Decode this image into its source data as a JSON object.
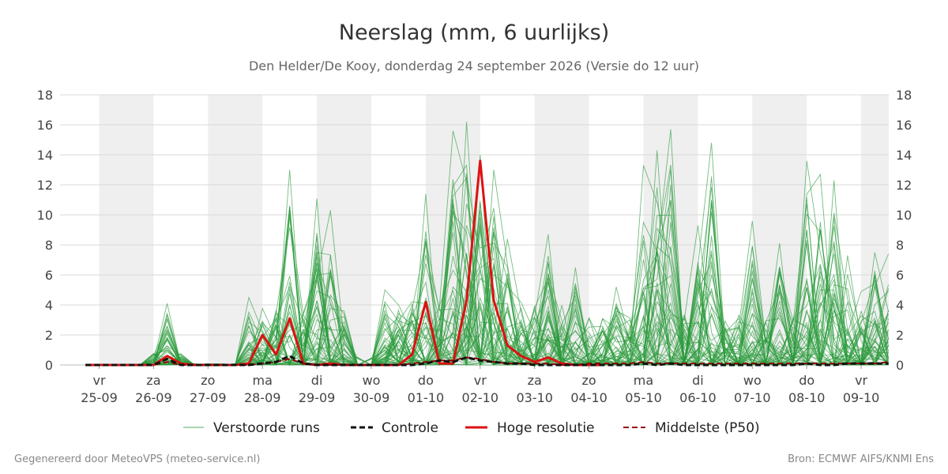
{
  "chart_data": {
    "type": "line",
    "title": "Neerslag (mm, 6 uurlijks)",
    "subtitle": "Den Helder/De Kooy, donderdag 24 september 2026 (Versie do 12 uur)",
    "ylim": [
      0,
      18
    ],
    "yticks": [
      0,
      2,
      4,
      6,
      8,
      10,
      12,
      14,
      16,
      18
    ],
    "x_start_day": "2026-09-24",
    "x_end_day": "2026-10-10",
    "x_ticks": [
      {
        "day": "vr",
        "date": "25-09"
      },
      {
        "day": "za",
        "date": "26-09"
      },
      {
        "day": "zo",
        "date": "27-09"
      },
      {
        "day": "ma",
        "date": "28-09"
      },
      {
        "day": "di",
        "date": "29-09"
      },
      {
        "day": "wo",
        "date": "30-09"
      },
      {
        "day": "do",
        "date": "01-10"
      },
      {
        "day": "vr",
        "date": "02-10"
      },
      {
        "day": "za",
        "date": "03-10"
      },
      {
        "day": "zo",
        "date": "04-10"
      },
      {
        "day": "ma",
        "date": "05-10"
      },
      {
        "day": "di",
        "date": "06-10"
      },
      {
        "day": "wo",
        "date": "07-10"
      },
      {
        "day": "do",
        "date": "08-10"
      },
      {
        "day": "vr",
        "date": "09-10"
      }
    ],
    "shaded_days": [
      "25-09",
      "27-09",
      "29-09",
      "01-10",
      "03-10",
      "05-10",
      "07-10",
      "09-10"
    ],
    "grid": true,
    "legend_position": "bottom",
    "series": [
      {
        "name": "Hoge resolutie",
        "color": "#dd1111",
        "x": [
          -0.25,
          0,
          0.25,
          0.5,
          0.75,
          1.0,
          1.25,
          1.5,
          1.75,
          2.0,
          2.25,
          2.5,
          2.75,
          3.0,
          3.25,
          3.5,
          3.75,
          4.0,
          4.25,
          4.5,
          4.75,
          5.0,
          5.25,
          5.5,
          5.75,
          6.0,
          6.25,
          6.5,
          6.75,
          7.0,
          7.25,
          7.5,
          7.75,
          8.0,
          8.25,
          8.5,
          8.75,
          9.0,
          9.25
        ],
        "values": [
          0.0,
          0.0,
          0.0,
          0.0,
          0.0,
          0.0,
          0.6,
          0.1,
          0.0,
          0.0,
          0.0,
          0.0,
          0.1,
          2.0,
          0.7,
          3.1,
          0.1,
          0.0,
          0.1,
          0.0,
          0.0,
          0.0,
          0.0,
          0.0,
          0.7,
          4.2,
          0.1,
          0.1,
          4.3,
          13.6,
          4.3,
          1.3,
          0.6,
          0.2,
          0.5,
          0.1,
          0.0,
          0.0,
          0.0
        ]
      },
      {
        "name": "Controle",
        "color": "#111111",
        "x": [
          -0.25,
          0,
          0.25,
          0.5,
          0.75,
          1.0,
          1.25,
          1.5,
          1.75,
          2.0,
          2.25,
          2.5,
          2.75,
          3.0,
          3.25,
          3.5,
          3.75,
          4.0,
          4.25,
          4.5,
          4.75,
          5.0,
          5.25,
          5.5,
          5.75,
          6.0,
          6.25,
          6.5,
          6.75,
          7.0,
          7.25,
          7.5,
          7.75,
          8.0,
          8.25,
          8.5,
          8.75,
          9.0,
          9.25,
          9.5,
          9.75,
          10.0,
          10.25,
          10.5,
          10.75,
          11.0,
          11.25,
          11.5,
          11.75,
          12.0,
          12.25,
          12.5,
          12.75,
          13.0,
          13.25,
          13.5,
          13.75,
          14.0,
          14.25,
          14.5
        ],
        "values": [
          0.0,
          0.0,
          0.0,
          0.0,
          0.0,
          0.0,
          0.4,
          0.0,
          0.0,
          0.0,
          0.0,
          0.0,
          0.0,
          0.1,
          0.2,
          0.6,
          0.1,
          0.0,
          0.0,
          0.0,
          0.0,
          0.0,
          0.0,
          0.0,
          0.0,
          0.1,
          0.3,
          0.2,
          0.5,
          0.3,
          0.2,
          0.1,
          0.1,
          0.0,
          0.0,
          0.0,
          0.0,
          0.0,
          0.0,
          0.0,
          0.0,
          0.1,
          0.0,
          0.1,
          0.0,
          0.0,
          0.0,
          0.0,
          0.0,
          0.0,
          0.0,
          0.0,
          0.0,
          0.1,
          0.0,
          0.0,
          0.1,
          0.1,
          0.1,
          0.1
        ]
      },
      {
        "name": "Middelste (P50)",
        "color": "#990000",
        "x": [
          -0.25,
          0,
          0.25,
          0.5,
          0.75,
          1.0,
          1.25,
          1.5,
          1.75,
          2.0,
          2.25,
          2.5,
          2.75,
          3.0,
          3.25,
          3.5,
          3.75,
          4.0,
          4.25,
          4.5,
          4.75,
          5.0,
          5.25,
          5.5,
          5.75,
          6.0,
          6.25,
          6.5,
          6.75,
          7.0,
          7.25,
          7.5,
          7.75,
          8.0,
          8.25,
          8.5,
          8.75,
          9.0,
          9.25,
          9.5,
          9.75,
          10.0,
          10.25,
          10.5,
          10.75,
          11.0,
          11.25,
          11.5,
          11.75,
          12.0,
          12.25,
          12.5,
          12.75,
          13.0,
          13.25,
          13.5,
          13.75,
          14.0,
          14.25,
          14.5
        ],
        "values": [
          0.0,
          0.0,
          0.0,
          0.0,
          0.0,
          0.0,
          0.2,
          0.0,
          0.0,
          0.0,
          0.0,
          0.0,
          0.0,
          0.1,
          0.2,
          0.4,
          0.1,
          0.0,
          0.0,
          0.0,
          0.0,
          0.0,
          0.0,
          0.0,
          0.1,
          0.2,
          0.3,
          0.3,
          0.5,
          0.4,
          0.2,
          0.1,
          0.1,
          0.1,
          0.1,
          0.0,
          0.0,
          0.1,
          0.1,
          0.1,
          0.1,
          0.2,
          0.1,
          0.1,
          0.1,
          0.1,
          0.1,
          0.1,
          0.1,
          0.1,
          0.1,
          0.1,
          0.1,
          0.1,
          0.1,
          0.1,
          0.1,
          0.1,
          0.1,
          0.2
        ]
      }
    ],
    "ensemble": {
      "name": "Verstoorde runs",
      "color": "#2a9a3a",
      "members": 50,
      "x_start": -0.25,
      "x_step": 0.25,
      "peaks": [
        {
          "x": 1.25,
          "max": 4.1
        },
        {
          "x": 2.75,
          "max": 1.5
        },
        {
          "x": 3.5,
          "max": 13.0
        },
        {
          "x": 4.0,
          "max": 11.1
        },
        {
          "x": 4.25,
          "max": 10.3
        },
        {
          "x": 5.25,
          "max": 2.9
        },
        {
          "x": 6.0,
          "max": 11.4
        },
        {
          "x": 6.5,
          "max": 15.6
        },
        {
          "x": 6.75,
          "max": 16.2
        },
        {
          "x": 7.0,
          "max": 14.0
        },
        {
          "x": 7.25,
          "max": 13.0
        },
        {
          "x": 7.5,
          "max": 8.4
        },
        {
          "x": 8.25,
          "max": 8.7
        },
        {
          "x": 8.75,
          "max": 6.5
        },
        {
          "x": 9.5,
          "max": 5.2
        },
        {
          "x": 10.0,
          "max": 13.3
        },
        {
          "x": 10.25,
          "max": 14.3
        },
        {
          "x": 10.5,
          "max": 15.7
        },
        {
          "x": 11.0,
          "max": 9.3
        },
        {
          "x": 11.25,
          "max": 14.8
        },
        {
          "x": 12.0,
          "max": 9.6
        },
        {
          "x": 12.5,
          "max": 8.1
        },
        {
          "x": 13.0,
          "max": 13.6
        },
        {
          "x": 13.25,
          "max": 12.7
        },
        {
          "x": 13.5,
          "max": 12.3
        },
        {
          "x": 13.75,
          "max": 7.3
        },
        {
          "x": 14.0,
          "max": 4.9
        },
        {
          "x": 14.25,
          "max": 7.5
        },
        {
          "x": 14.5,
          "max": 7.4
        }
      ]
    }
  },
  "legend": [
    {
      "label": "Verstoorde runs",
      "style": "thin-green"
    },
    {
      "label": "Controle",
      "style": "black-dashed"
    },
    {
      "label": "Hoge resolutie",
      "style": "red-solid"
    },
    {
      "label": "Middelste (P50)",
      "style": "darkred-dashed"
    }
  ],
  "footer": {
    "left": "Gegenereerd door MeteoVPS (meteo-service.nl)",
    "right": "Bron: ECMWF AIFS/KNMI Ens"
  }
}
